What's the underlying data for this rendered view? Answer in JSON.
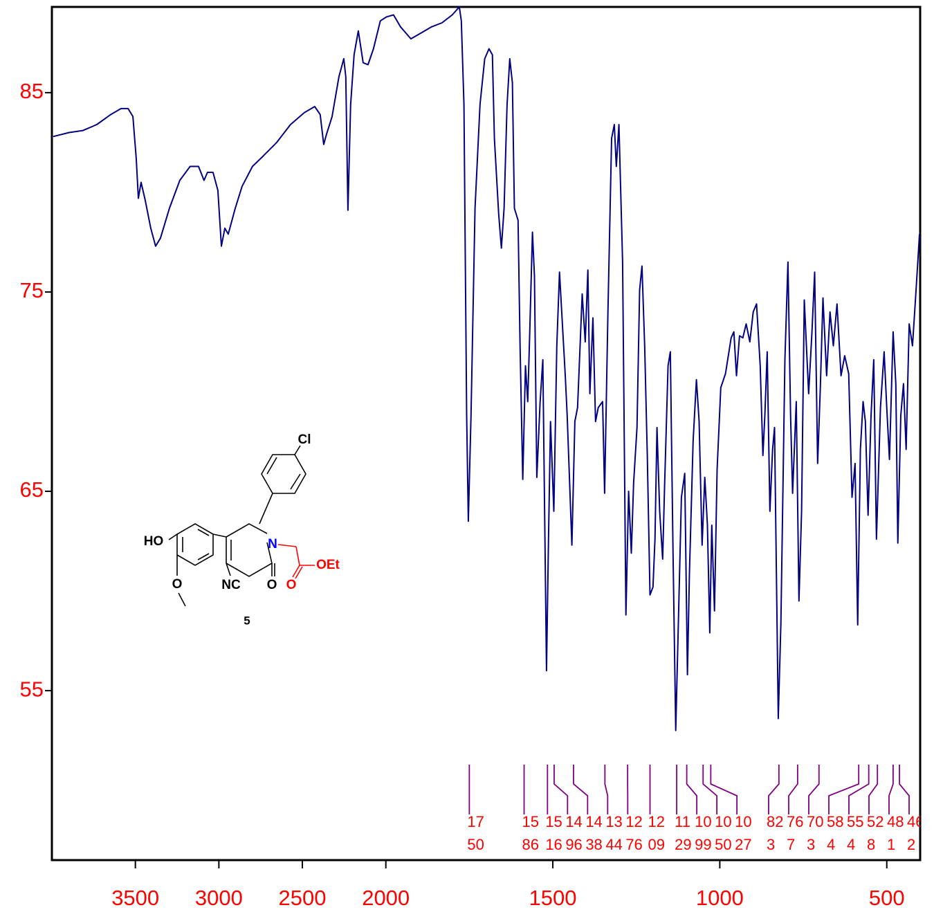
{
  "chart_data": {
    "type": "line",
    "x": [
      3992,
      3896,
      3814,
      3731,
      3648,
      3586,
      3544,
      3515,
      3495,
      3482,
      3466,
      3441,
      3408,
      3379,
      3350,
      3296,
      3234,
      3172,
      3122,
      3089,
      3068,
      3035,
      3006,
      2985,
      2964,
      2944,
      2902,
      2861,
      2799,
      2737,
      2654,
      2571,
      2488,
      2426,
      2393,
      2372,
      2356,
      2322,
      2281,
      2252,
      2240,
      2227,
      2211,
      2190,
      2165,
      2136,
      2107,
      2074,
      2033,
      1998,
      1977,
      1956,
      1925,
      1894,
      1863,
      1832,
      1801,
      1780,
      1774,
      1766,
      1758,
      1753,
      1745,
      1733,
      1718,
      1704,
      1691,
      1681,
      1675,
      1662,
      1654,
      1646,
      1637,
      1629,
      1621,
      1615,
      1604,
      1598,
      1590,
      1582,
      1575,
      1569,
      1561,
      1555,
      1548,
      1538,
      1530,
      1519,
      1513,
      1507,
      1497,
      1488,
      1480,
      1470,
      1463,
      1457,
      1443,
      1434,
      1426,
      1412,
      1403,
      1395,
      1389,
      1380,
      1372,
      1364,
      1351,
      1345,
      1335,
      1324,
      1316,
      1310,
      1302,
      1291,
      1281,
      1273,
      1265,
      1258,
      1248,
      1240,
      1233,
      1225,
      1217,
      1209,
      1200,
      1194,
      1188,
      1180,
      1171,
      1165,
      1155,
      1148,
      1140,
      1132,
      1124,
      1115,
      1105,
      1097,
      1091,
      1080,
      1070,
      1062,
      1053,
      1045,
      1037,
      1030,
      1024,
      1016,
      1008,
      997,
      983,
      966,
      958,
      950,
      941,
      931,
      921,
      910,
      900,
      890,
      879,
      871,
      865,
      858,
      850,
      842,
      836,
      825,
      817,
      805,
      796,
      788,
      782,
      771,
      763,
      755,
      747,
      734,
      724,
      716,
      707,
      699,
      691,
      680,
      670,
      660,
      649,
      637,
      626,
      614,
      604,
      595,
      587,
      579,
      571,
      564,
      556,
      547,
      539,
      531,
      519,
      508,
      500,
      492,
      481,
      473,
      467,
      458,
      450,
      442,
      433,
      423,
      415,
      406,
      402
    ],
    "values": [
      82.8,
      83.0,
      83.1,
      83.4,
      83.9,
      84.2,
      84.2,
      83.8,
      81.7,
      79.7,
      80.5,
      79.6,
      78.2,
      77.3,
      77.7,
      79.2,
      80.6,
      81.3,
      81.3,
      80.6,
      81.0,
      81.0,
      80.1,
      77.3,
      78.2,
      77.9,
      79.2,
      80.3,
      81.3,
      81.8,
      82.5,
      83.4,
      84.0,
      84.3,
      83.9,
      82.4,
      82.9,
      83.8,
      85.8,
      86.7,
      85.8,
      79.1,
      84.4,
      86.9,
      88.1,
      86.5,
      86.4,
      87.2,
      88.6,
      88.8,
      88.9,
      88.3,
      87.7,
      88.0,
      88.3,
      88.5,
      88.9,
      89.3,
      88.6,
      84.4,
      68.8,
      63.5,
      68.8,
      79.2,
      84.4,
      86.7,
      87.2,
      86.9,
      82.7,
      78.9,
      77.2,
      79.2,
      84.4,
      86.7,
      85.5,
      79.2,
      78.6,
      72.3,
      65.6,
      71.3,
      69.5,
      73.0,
      78.0,
      75.8,
      65.7,
      69.5,
      71.6,
      56.0,
      62.6,
      68.5,
      64.0,
      72.3,
      76.0,
      73.0,
      70.9,
      68.8,
      62.3,
      68.5,
      69.2,
      74.9,
      72.5,
      76.1,
      69.9,
      73.7,
      68.5,
      69.2,
      69.5,
      64.9,
      74.0,
      82.7,
      83.4,
      81.3,
      83.4,
      76.5,
      58.8,
      65.0,
      61.9,
      65.4,
      68.2,
      75.1,
      76.3,
      72.3,
      66.8,
      59.8,
      60.2,
      62.6,
      68.2,
      64.0,
      61.6,
      65.4,
      71.3,
      72.0,
      61.9,
      53.0,
      58.4,
      64.7,
      65.9,
      55.8,
      60.9,
      67.5,
      70.6,
      68.5,
      62.3,
      65.7,
      63.3,
      57.9,
      63.3,
      59.0,
      66.1,
      70.2,
      70.9,
      72.7,
      73.0,
      70.8,
      72.8,
      72.7,
      73.4,
      72.5,
      74.0,
      74.4,
      71.3,
      66.8,
      68.8,
      72.0,
      64.0,
      67.1,
      68.2,
      53.6,
      58.4,
      71.6,
      76.5,
      68.8,
      64.9,
      69.5,
      59.5,
      64.0,
      74.6,
      69.9,
      73.0,
      76.0,
      66.4,
      70.2,
      74.7,
      70.8,
      74.0,
      72.3,
      74.4,
      70.8,
      71.8,
      70.9,
      64.7,
      66.4,
      58.3,
      67.1,
      69.5,
      68.5,
      63.8,
      68.8,
      71.6,
      62.6,
      69.2,
      72.0,
      69.2,
      66.6,
      73.0,
      70.4,
      62.4,
      68.8,
      70.4,
      67.1,
      73.4,
      72.3,
      74.4,
      76.8,
      77.9
    ],
    "color": "#000080",
    "xlim": [
      4000,
      400
    ],
    "xscale_break": 2000,
    "xticks": [
      3500,
      3000,
      2500,
      2000,
      1500,
      1000,
      500
    ],
    "ylim": [
      46.5,
      89.3
    ],
    "yticks": [
      55,
      65,
      75,
      85
    ],
    "tick_label_color": "#ff0000",
    "peaks": [
      1750,
      1586,
      1516,
      1496,
      1438,
      1344,
      1276,
      1209,
      1129,
      1099,
      1050,
      1027,
      823,
      767,
      703,
      584,
      554,
      528,
      481,
      462
    ],
    "peak_color": "#800080"
  },
  "structure": {
    "labels": {
      "cl": "Cl",
      "ho": "HO",
      "methoxy_o": "O",
      "nc": "NC",
      "carbonyl_o": "O",
      "n": "N",
      "ester_o": "O",
      "oet": "OEt"
    },
    "compound": "5"
  }
}
